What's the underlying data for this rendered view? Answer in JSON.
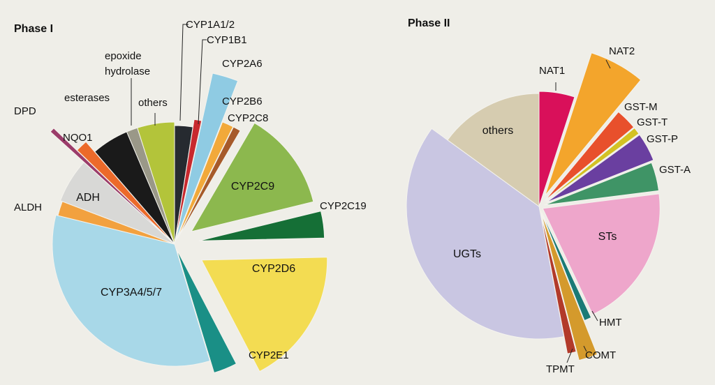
{
  "chart_data": [
    {
      "type": "pie",
      "title": "Phase I",
      "exploded": true,
      "slices": [
        {
          "label": "CYP1A1/2",
          "value": 2.5,
          "color": "#262a30"
        },
        {
          "label": "CYP1B1",
          "value": 1.0,
          "color": "#c8282e"
        },
        {
          "label": "CYP2A6",
          "value": 2.5,
          "color": "#8fcbe3"
        },
        {
          "label": "CYP2B6",
          "value": 1.5,
          "color": "#f2a93a"
        },
        {
          "label": "CYP2C8",
          "value": 1.0,
          "color": "#a65a2a"
        },
        {
          "label": "CYP2C9",
          "value": 13.0,
          "color": "#8cb84e"
        },
        {
          "label": "CYP2C19",
          "value": 3.5,
          "color": "#156f36"
        },
        {
          "label": "CYP2D6",
          "value": 18.0,
          "color": "#f3dc52"
        },
        {
          "label": "CYP2E1",
          "value": 3.0,
          "color": "#1a8f86"
        },
        {
          "label": "CYP3A4/5/7",
          "value": 34.0,
          "color": "#a8d8e8"
        },
        {
          "label": "ALDH",
          "value": 2.0,
          "color": "#f2a13f"
        },
        {
          "label": "ADH",
          "value": 6.0,
          "color": "#d8d8d6"
        },
        {
          "label": "DPD",
          "value": 0.5,
          "color": "#9b3c6a"
        },
        {
          "label": "NQO1",
          "value": 1.5,
          "color": "#ec6a2a"
        },
        {
          "label": "esterases",
          "value": 5.0,
          "color": "#1a1a1a"
        },
        {
          "label": "epoxide hydrolase",
          "value": 1.5,
          "color": "#9a9888"
        },
        {
          "label": "others",
          "value": 5.0,
          "color": "#b3c43a"
        }
      ]
    },
    {
      "type": "pie",
      "title": "Phase II",
      "exploded": true,
      "slices": [
        {
          "label": "NAT1",
          "value": 5.0,
          "color": "#d9105a"
        },
        {
          "label": "NAT2",
          "value": 6.0,
          "color": "#f3a52c"
        },
        {
          "label": "GST-M",
          "value": 3.0,
          "color": "#e8502c"
        },
        {
          "label": "GST-T",
          "value": 1.0,
          "color": "#d3c223"
        },
        {
          "label": "GST-P",
          "value": 4.0,
          "color": "#6a3fa0"
        },
        {
          "label": "GST-A",
          "value": 4.0,
          "color": "#3f9466"
        },
        {
          "label": "STs",
          "value": 20.0,
          "color": "#eea6cb"
        },
        {
          "label": "HMT",
          "value": 1.0,
          "color": "#1a7a76"
        },
        {
          "label": "COMT",
          "value": 2.0,
          "color": "#d49a2c"
        },
        {
          "label": "TPMT",
          "value": 1.0,
          "color": "#b23a2a"
        },
        {
          "label": "UGTs",
          "value": 38.0,
          "color": "#c9c6e2"
        },
        {
          "label": "others",
          "value": 15.0,
          "color": "#d6ccb0"
        }
      ]
    }
  ]
}
